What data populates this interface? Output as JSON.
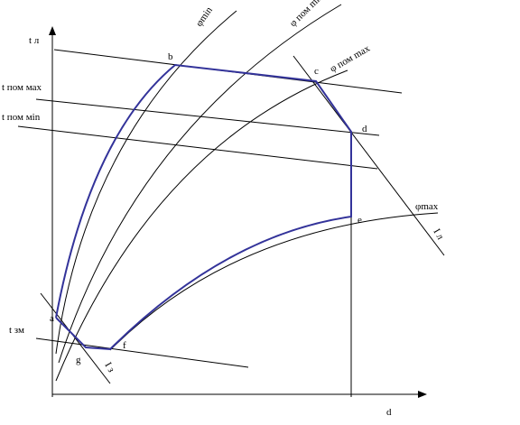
{
  "axis_label": "d",
  "lines": [
    "t л",
    "t пом мах",
    "t пом міn",
    "t зм"
  ],
  "curves": [
    "φmin",
    "φ пом min",
    "φ пом max",
    "φmax"
  ],
  "enthalpy": [
    "І л",
    "І з"
  ],
  "points": [
    "a",
    "b",
    "c",
    "d",
    "e",
    "f",
    "g"
  ]
}
